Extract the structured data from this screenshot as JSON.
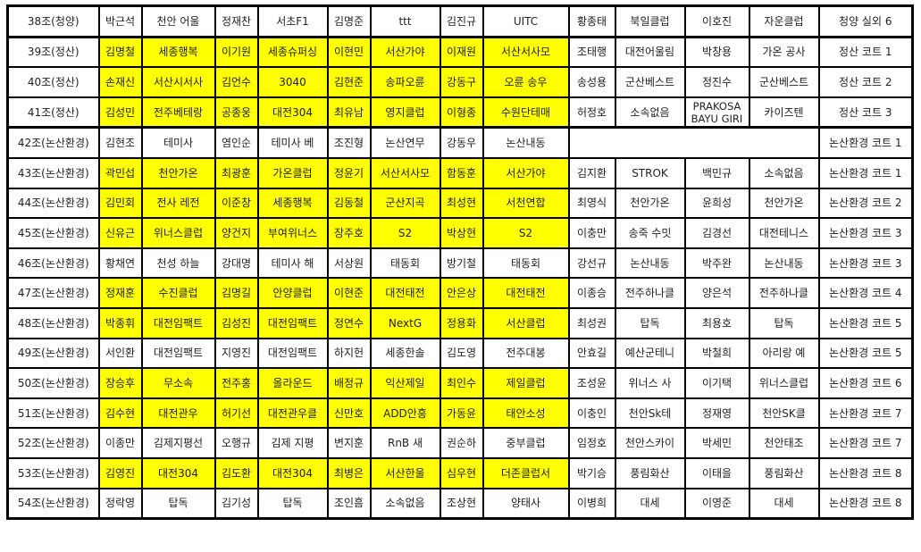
{
  "highlight_color": "#ffff00",
  "rows": [
    {
      "group": "38조(청양)",
      "highlight": false,
      "cells": [
        "박근석",
        "천안 어울",
        "정재찬",
        "서초F1",
        "김명준",
        "ttt",
        "김진규",
        "UITC",
        "황종태",
        "북일클럽",
        "이호진",
        "자운클럽"
      ],
      "court": "청양 실외 6"
    },
    {
      "group": "39조(정산)",
      "highlight": true,
      "cells": [
        "김명철",
        "세종행복",
        "이기원",
        "세종슈퍼싱",
        "이현민",
        "서산가야",
        "이재원",
        "서산서사모",
        "조태행",
        "대전어울림",
        "박창용",
        "가온 공사"
      ],
      "court": "정산 코트 1"
    },
    {
      "group": "40조(정산)",
      "highlight": true,
      "cells": [
        "손재신",
        "서산시서사",
        "김언수",
        "3040",
        "김현준",
        "송파오륜",
        "강동구",
        "오륜 송우",
        "송성용",
        "군산베스트",
        "정진수",
        "군산베스트"
      ],
      "court": "정산 코트 2"
    },
    {
      "group": "41조(정산)",
      "highlight": true,
      "cells": [
        "김성민",
        "전주베테랑",
        "공종웅",
        "대전304",
        "최유남",
        "영지클럽",
        "이형종",
        "수원단테매",
        "허정호",
        "소속없음",
        "PRAKOSA BAYU GIRI",
        "카이즈텐"
      ],
      "court": "정산 코트 3"
    },
    {
      "group": "42조(논산환경)",
      "highlight": false,
      "cells": [
        "김현조",
        "테미사",
        "염인순",
        "테미사 베",
        "조진형",
        "논산연무",
        "강동우",
        "논산내동"
      ],
      "court": "논산환경 코트 1"
    },
    {
      "group": "43조(논산환경)",
      "highlight": true,
      "cells": [
        "곽민섭",
        "천안가온",
        "최광훈",
        "가온클럽",
        "정윤기",
        "서산서사모",
        "함동훈",
        "서산가야",
        "김지환",
        "STROK",
        "백민규",
        "소속없음"
      ],
      "court": "논산환경 코트 1"
    },
    {
      "group": "44조(논산환경)",
      "highlight": true,
      "cells": [
        "김민회",
        "전사 레전",
        "이준창",
        "세종행복",
        "김동철",
        "군산지곡",
        "최성현",
        "서천연합",
        "최영식",
        "천안가온",
        "윤희성",
        "천안가온"
      ],
      "court": "논산환경 코트 2"
    },
    {
      "group": "45조(논산환경)",
      "highlight": true,
      "cells": [
        "신유근",
        "위너스클럽",
        "양건지",
        "부여위너스",
        "장주호",
        "S2",
        "박상현",
        "S2",
        "이충만",
        "송죽 수밋",
        "김경선",
        "대전테니스"
      ],
      "court": "논산환경 코트 3"
    },
    {
      "group": "46조(논산환경)",
      "highlight": false,
      "cells": [
        "황채연",
        "천성 하늘",
        "강대명",
        "테미사 해",
        "서상원",
        "태동회",
        "방기철",
        "태동회",
        "강선규",
        "논산내동",
        "박주완",
        "논산내동"
      ],
      "court": "논산환경 코트 3"
    },
    {
      "group": "47조(논산환경)",
      "highlight": true,
      "cells": [
        "정재훈",
        "수진클럽",
        "김명길",
        "안양클럽",
        "이현준",
        "대전태전",
        "안은상",
        "대전태전",
        "이종승",
        "전주하나클",
        "양은석",
        "전주하나클"
      ],
      "court": "논산환경 코트 4"
    },
    {
      "group": "48조(논산환경)",
      "highlight": true,
      "cells": [
        "박종휘",
        "대전임팩트",
        "김성진",
        "대전임팩트",
        "정연수",
        "NextG",
        "정용화",
        "서산클럽",
        "최성권",
        "탑독",
        "최용호",
        "탑독"
      ],
      "court": "논산환경 코트 5"
    },
    {
      "group": "49조(논산환경)",
      "highlight": false,
      "cells": [
        "서인환",
        "대전임팩트",
        "지영진",
        "대전임팩트",
        "하지헌",
        "세종한솔",
        "김도영",
        "전주대봉",
        "안효길",
        "예산군테니",
        "박철희",
        "아리랑 예"
      ],
      "court": "논산환경 코트 5"
    },
    {
      "group": "50조(논산환경)",
      "highlight": true,
      "cells": [
        "장승후",
        "무소속",
        "전주홍",
        "올라운드",
        "배정규",
        "익산제일",
        "최인수",
        "제일클럽",
        "조성윤",
        "위너스 사",
        "이기택",
        "위너스클럽"
      ],
      "court": "논산환경 코트 6"
    },
    {
      "group": "51조(논산환경)",
      "highlight": true,
      "cells": [
        "김수현",
        "대전관우",
        "허기선",
        "대전관우클",
        "신만호",
        "ADD안흥",
        "가동윤",
        "태안소성",
        "이충인",
        "천안Sk테",
        "정재영",
        "천안SK클"
      ],
      "court": "논산환경 코트 7"
    },
    {
      "group": "52조(논산환경)",
      "highlight": false,
      "cells": [
        "이종만",
        "김제지평선",
        "오행규",
        "김제 지평",
        "변지훈",
        "RnB 새",
        "권순하",
        "중부클럽",
        "임정호",
        "천안스카이",
        "박세민",
        "천안태조"
      ],
      "court": "논산환경 코트 7"
    },
    {
      "group": "53조(논산환경)",
      "highlight": true,
      "cells": [
        "김영진",
        "대전304",
        "김도환",
        "대전304",
        "최병은",
        "서산한울",
        "심우현",
        "더존클럽서",
        "박기승",
        "풍림화산",
        "이태을",
        "풍림화산"
      ],
      "court": "논산환경 코트 8"
    },
    {
      "group": "54조(논산환경)",
      "highlight": false,
      "cells": [
        "정락영",
        "탑독",
        "김기성",
        "탑독",
        "조인흠",
        "소속없음",
        "조상현",
        "양태사",
        "이병희",
        "대세",
        "이영준",
        "대세"
      ],
      "court": "논산환경 코트 8"
    }
  ]
}
